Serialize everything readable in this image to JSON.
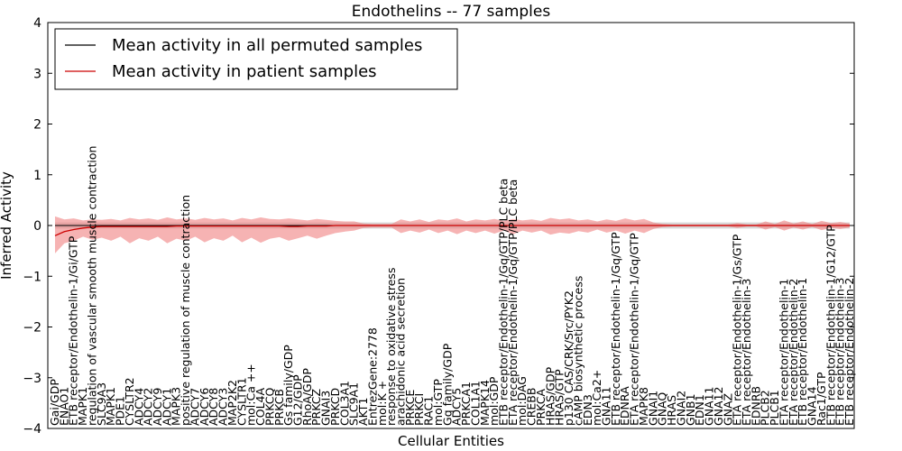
{
  "chart_data": {
    "type": "line",
    "title": "Endothelins -- 77 samples",
    "xlabel": "Cellular Entities",
    "ylabel": "Inferred Activity",
    "ylim": [
      -4,
      4
    ],
    "yticks": [
      "−4",
      "−3",
      "−2",
      "−1",
      "0",
      "1",
      "2",
      "3",
      "4"
    ],
    "legend": {
      "placement": "top-left",
      "entries": [
        {
          "name": "Mean activity in all permuted samples",
          "color": "#000000"
        },
        {
          "name": "Mean activity in patient samples",
          "color": "#cc0000"
        }
      ]
    },
    "colors": {
      "patient_line": "#cc0000",
      "patient_band": "#f08080",
      "permuted_line": "#000000",
      "permuted_band": "#b0b0b0"
    },
    "categories": [
      "Gai/GDP",
      "ENAO1",
      "ETB receptor/Endothelin-1/Gi/GTP",
      "MAPK1",
      "regulation of vascular smooth muscle contraction",
      "SLC9A3",
      "MAPK1",
      "PDE1",
      "CYSLTR2",
      "ADCY4",
      "ADCY2",
      "ADCY9",
      "ADCY1",
      "MAPK3",
      "positive regulation of muscle contraction",
      "ADCY7",
      "ADCY6",
      "ADCY8",
      "ADCY3",
      "MAP2K2",
      "CYSLTR1",
      "mol:Ca ++",
      "COL4A",
      "PRKCQ",
      "PRKCB",
      "Gs family/GDP",
      "G12/GDP",
      "RhoA/GDP",
      "PRKCZ",
      "GNAI3",
      "PRKCD",
      "COL3A1",
      "SLC9A1",
      "AKT1",
      "EntrezGene:2778",
      "mol:K +",
      "response to oxidative stress",
      "arachidonic acid secretion",
      "PRKCE",
      "PRKCI",
      "RAC1",
      "mol:GTP",
      "Gq family/GDP",
      "ADCY5",
      "PRKCA1",
      "COL1A1",
      "MAPK14",
      "mol:GDP",
      "ETB receptor/Endothelin-1/Gq/GTP/PLC beta",
      "ETA receptor/Endothelin-1/Gq/GTP/PLC beta",
      "mol:DAG",
      "CREBB",
      "PRKCA",
      "HRAS/GDP",
      "HRAS/GTP",
      "p130 CAS/CRK/Src/PYK2",
      "cAMP biosynthetic process",
      "EDN3",
      "mol:Ca2+",
      "GNA11",
      "ETB receptor/Endothelin-1/Gq/GTP",
      "EDNRA",
      "ETA receptor/Endothelin-1/Gq/GTP",
      "MAPK8",
      "GNAI1",
      "GNAQ",
      "HRAS",
      "GNAI2",
      "GNB1",
      "EDN1",
      "GNA11",
      "GNA12",
      "GNAZ",
      "ETA receptor/Endothelin-1/Gs/GTP",
      "ETA receptor/Endothelin-3",
      "EDNRB",
      "PLCB2",
      "PLCB1",
      "ETA receptor/Endothelin-1",
      "ETA receptor/Endothelin-2",
      "ETB receptor/Endothelin-1",
      "GNA14",
      "Rac1/GTP",
      "ETB receptor/Endothelin-1/G12/GTP",
      "ETB receptor/Endothelin-3",
      "ETB receptor/Endothelin-2"
    ],
    "patient": {
      "mean": [
        -0.2,
        -0.12,
        -0.08,
        -0.05,
        -0.03,
        -0.02,
        -0.02,
        -0.02,
        -0.02,
        -0.02,
        -0.02,
        -0.02,
        -0.02,
        -0.01,
        -0.01,
        -0.01,
        -0.01,
        -0.01,
        -0.01,
        -0.01,
        -0.01,
        -0.01,
        -0.01,
        -0.01,
        -0.01,
        -0.02,
        -0.02,
        -0.01,
        -0.01,
        -0.01,
        0.0,
        0.0,
        0.0,
        0.0,
        0.0,
        0.0,
        0.0,
        0.0,
        0.0,
        0.0,
        0.0,
        0.0,
        0.0,
        0.0,
        0.0,
        0.0,
        0.0,
        0.0,
        0.0,
        0.0,
        0.0,
        0.0,
        0.0,
        0.0,
        0.0,
        0.0,
        0.0,
        0.0,
        0.0,
        0.0,
        0.0,
        0.0,
        0.0,
        0.0,
        0.0,
        0.0,
        0.0,
        0.0,
        0.0,
        0.0,
        0.0,
        0.0,
        0.0,
        0.0,
        0.0,
        0.0,
        0.0,
        0.0,
        0.0,
        0.0,
        0.0,
        0.0,
        0.0,
        0.0,
        0.0,
        0.0
      ],
      "upper": [
        0.18,
        0.12,
        0.14,
        0.1,
        0.12,
        0.11,
        0.13,
        0.1,
        0.15,
        0.12,
        0.14,
        0.11,
        0.16,
        0.12,
        0.14,
        0.11,
        0.15,
        0.12,
        0.14,
        0.1,
        0.15,
        0.12,
        0.16,
        0.13,
        0.12,
        0.14,
        0.12,
        0.1,
        0.13,
        0.11,
        0.09,
        0.08,
        0.08,
        0.04,
        0.03,
        0.03,
        0.03,
        0.12,
        0.08,
        0.12,
        0.07,
        0.12,
        0.1,
        0.14,
        0.08,
        0.12,
        0.1,
        0.13,
        0.09,
        0.13,
        0.1,
        0.12,
        0.09,
        0.15,
        0.12,
        0.14,
        0.1,
        0.12,
        0.08,
        0.12,
        0.09,
        0.14,
        0.1,
        0.13,
        0.06,
        0.03,
        0.02,
        0.02,
        0.02,
        0.02,
        0.02,
        0.02,
        0.02,
        0.05,
        0.02,
        0.02,
        0.08,
        0.03,
        0.1,
        0.04,
        0.08,
        0.03,
        0.09,
        0.05,
        0.07,
        0.04
      ],
      "lower": [
        -0.55,
        -0.35,
        -0.3,
        -0.22,
        -0.28,
        -0.24,
        -0.3,
        -0.22,
        -0.35,
        -0.25,
        -0.3,
        -0.22,
        -0.35,
        -0.26,
        -0.3,
        -0.22,
        -0.33,
        -0.25,
        -0.3,
        -0.2,
        -0.33,
        -0.24,
        -0.34,
        -0.26,
        -0.23,
        -0.3,
        -0.25,
        -0.2,
        -0.26,
        -0.2,
        -0.15,
        -0.12,
        -0.1,
        -0.05,
        -0.04,
        -0.04,
        -0.04,
        -0.15,
        -0.1,
        -0.14,
        -0.08,
        -0.15,
        -0.1,
        -0.17,
        -0.1,
        -0.15,
        -0.1,
        -0.16,
        -0.1,
        -0.17,
        -0.1,
        -0.14,
        -0.1,
        -0.18,
        -0.14,
        -0.16,
        -0.11,
        -0.14,
        -0.08,
        -0.14,
        -0.1,
        -0.16,
        -0.1,
        -0.15,
        -0.07,
        -0.03,
        -0.02,
        -0.02,
        -0.02,
        -0.02,
        -0.02,
        -0.02,
        -0.02,
        -0.05,
        -0.02,
        -0.02,
        -0.08,
        -0.03,
        -0.1,
        -0.04,
        -0.08,
        -0.03,
        -0.09,
        -0.05,
        -0.07,
        -0.04
      ]
    },
    "permuted": {
      "mean": 0.0,
      "band": 0.06
    }
  }
}
